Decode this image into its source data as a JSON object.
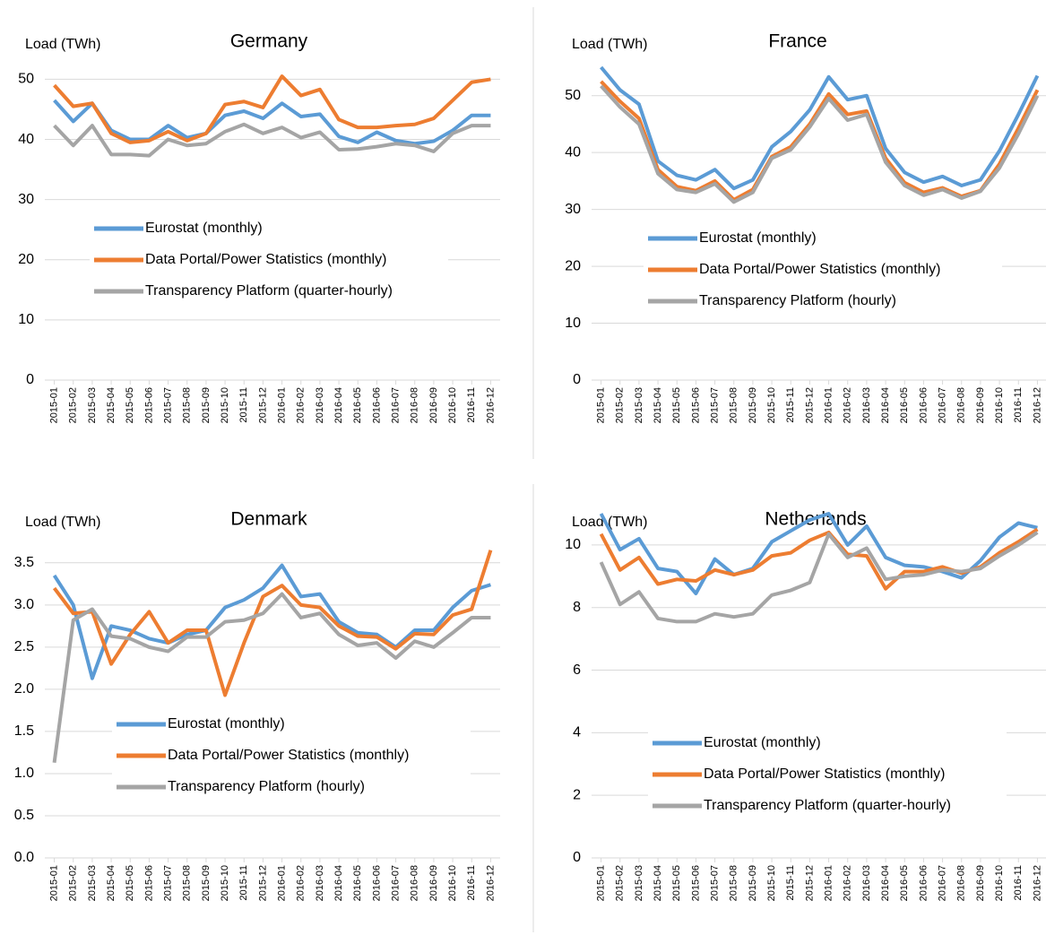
{
  "chart_data": [
    {
      "type": "line",
      "title": "Germany",
      "y_label": "Load (TWh)",
      "categories": [
        "2015-01",
        "2015-02",
        "2015-03",
        "2015-04",
        "2015-05",
        "2015-06",
        "2015-07",
        "2015-08",
        "2015-09",
        "2015-10",
        "2015-11",
        "2015-12",
        "2016-01",
        "2016-02",
        "2016-03",
        "2016-04",
        "2016-05",
        "2016-06",
        "2016-07",
        "2016-08",
        "2016-09",
        "2016-10",
        "2016-11",
        "2016-12"
      ],
      "series": [
        {
          "name": "Eurostat (monthly)",
          "color": "#5b9bd5",
          "values": [
            46.5,
            43,
            46,
            41.5,
            40,
            40,
            42.3,
            40.3,
            41,
            44,
            44.7,
            43.5,
            46,
            43.8,
            44.2,
            40.5,
            39.5,
            41.2,
            39.8,
            39.3,
            39.7,
            41.5,
            44,
            44
          ]
        },
        {
          "name": "Data Portal/Power Statistics (monthly)",
          "color": "#ed7d31",
          "values": [
            49,
            45.5,
            46,
            41,
            39.5,
            39.8,
            41.3,
            39.8,
            41,
            45.8,
            46.3,
            45.3,
            50.5,
            47.3,
            48.3,
            43.3,
            42,
            42,
            42.3,
            42.5,
            43.5,
            46.5,
            49.5,
            50
          ]
        },
        {
          "name": "Transparency Platform (quarter-hourly)",
          "color": "#a5a5a5",
          "values": [
            42.3,
            39,
            42.3,
            37.5,
            37.5,
            37.3,
            40,
            39,
            39.3,
            41.3,
            42.5,
            41,
            42,
            40.3,
            41.2,
            38.3,
            38.4,
            38.8,
            39.3,
            39,
            38,
            41,
            42.3,
            42.3
          ]
        }
      ],
      "ylim": [
        0,
        52
      ],
      "yticks": [
        0,
        10,
        20,
        30,
        40,
        50
      ],
      "grid": true
    },
    {
      "type": "line",
      "title": "France",
      "y_label": "Load (TWh)",
      "categories": [
        "2015-01",
        "2015-02",
        "2015-03",
        "2015-04",
        "2015-05",
        "2015-06",
        "2015-07",
        "2015-08",
        "2015-09",
        "2015-10",
        "2015-11",
        "2015-12",
        "2016-01",
        "2016-02",
        "2016-03",
        "2016-04",
        "2016-05",
        "2016-06",
        "2016-07",
        "2016-08",
        "2016-09",
        "2016-10",
        "2016-11",
        "2016-12"
      ],
      "series": [
        {
          "name": "Eurostat (monthly)",
          "color": "#5b9bd5",
          "values": [
            55,
            51,
            48.5,
            38.5,
            36,
            35.2,
            37,
            33.7,
            35.2,
            41,
            43.7,
            47.5,
            53.3,
            49.3,
            50,
            40.7,
            36.5,
            34.8,
            35.8,
            34.2,
            35.2,
            40.3,
            46.7,
            53.5
          ]
        },
        {
          "name": "Data Portal/Power Statistics (monthly)",
          "color": "#ed7d31",
          "values": [
            52.5,
            49,
            46,
            37,
            34,
            33.3,
            35,
            31.7,
            33.5,
            39.3,
            41,
            45,
            50.3,
            46.7,
            47.3,
            39,
            34.7,
            33,
            33.8,
            32.3,
            33.3,
            38,
            44.3,
            51
          ]
        },
        {
          "name": "Transparency Platform (hourly)",
          "color": "#a5a5a5",
          "values": [
            51.7,
            48,
            45,
            36.3,
            33.5,
            33,
            34.5,
            31.3,
            33,
            39,
            40.5,
            44.5,
            49.5,
            45.7,
            46.7,
            38.3,
            34.2,
            32.5,
            33.5,
            32,
            33.2,
            37.3,
            43.3,
            50
          ]
        }
      ],
      "ylim": [
        0,
        55
      ],
      "yticks": [
        0,
        10,
        20,
        30,
        40,
        50
      ],
      "grid": true
    },
    {
      "type": "line",
      "title": "Denmark",
      "y_label": "Load (TWh)",
      "categories": [
        "2015-01",
        "2015-02",
        "2015-03",
        "2015-04",
        "2015-05",
        "2015-06",
        "2015-07",
        "2015-08",
        "2015-09",
        "2015-10",
        "2015-11",
        "2015-12",
        "2016-01",
        "2016-02",
        "2016-03",
        "2016-04",
        "2016-05",
        "2016-06",
        "2016-07",
        "2016-08",
        "2016-09",
        "2016-10",
        "2016-11",
        "2016-12"
      ],
      "series": [
        {
          "name": "Eurostat (monthly)",
          "color": "#5b9bd5",
          "values": [
            3.35,
            3.0,
            2.13,
            2.75,
            2.7,
            2.6,
            2.55,
            2.65,
            2.7,
            2.97,
            3.06,
            3.2,
            3.47,
            3.1,
            3.13,
            2.8,
            2.67,
            2.65,
            2.5,
            2.7,
            2.7,
            2.97,
            3.17,
            3.24
          ]
        },
        {
          "name": "Data Portal/Power Statistics (monthly)",
          "color": "#ed7d31",
          "values": [
            3.2,
            2.9,
            2.92,
            2.3,
            2.65,
            2.92,
            2.55,
            2.7,
            2.7,
            1.93,
            2.55,
            3.1,
            3.23,
            3.0,
            2.97,
            2.75,
            2.63,
            2.62,
            2.48,
            2.66,
            2.65,
            2.88,
            2.95,
            3.65
          ]
        },
        {
          "name": "Transparency Platform (hourly)",
          "color": "#a5a5a5",
          "values": [
            1.13,
            2.82,
            2.95,
            2.63,
            2.6,
            2.5,
            2.45,
            2.62,
            2.62,
            2.8,
            2.82,
            2.9,
            3.13,
            2.85,
            2.9,
            2.65,
            2.52,
            2.55,
            2.37,
            2.57,
            2.5,
            2.67,
            2.85,
            2.85
          ]
        }
      ],
      "ylim": [
        0,
        3.7
      ],
      "yticks": [
        {
          "value": 0,
          "label": "0.0"
        },
        0.5,
        {
          "value": 1,
          "label": "1.0"
        },
        1.5,
        {
          "value": 2,
          "label": "2.0"
        },
        2.5,
        {
          "value": 3,
          "label": "3.0"
        },
        3.5
      ],
      "grid": true
    },
    {
      "type": "line",
      "title": "Netherlands",
      "y_label": "Load (TWh)",
      "categories": [
        "2015-01",
        "2015-02",
        "2015-03",
        "2015-04",
        "2015-05",
        "2015-06",
        "2015-07",
        "2015-08",
        "2015-09",
        "2015-10",
        "2015-11",
        "2015-12",
        "2016-01",
        "2016-02",
        "2016-03",
        "2016-04",
        "2016-05",
        "2016-06",
        "2016-07",
        "2016-08",
        "2016-09",
        "2016-10",
        "2016-11",
        "2016-12"
      ],
      "series": [
        {
          "name": "Eurostat (monthly)",
          "color": "#5b9bd5",
          "values": [
            11,
            9.85,
            10.2,
            9.25,
            9.15,
            8.45,
            9.55,
            9.05,
            9.25,
            10.1,
            10.45,
            10.8,
            11,
            10,
            10.6,
            9.6,
            9.35,
            9.3,
            9.15,
            8.95,
            9.5,
            10.25,
            10.7,
            10.55
          ]
        },
        {
          "name": "Data Portal/Power Statistics (monthly)",
          "color": "#ed7d31",
          "values": [
            10.35,
            9.2,
            9.6,
            8.75,
            8.9,
            8.85,
            9.2,
            9.05,
            9.2,
            9.65,
            9.75,
            10.15,
            10.4,
            9.7,
            9.65,
            8.6,
            9.15,
            9.15,
            9.3,
            9.1,
            9.3,
            9.75,
            10.1,
            10.5
          ]
        },
        {
          "name": "Transparency Platform (quarter-hourly)",
          "color": "#a5a5a5",
          "values": [
            9.45,
            8.1,
            8.5,
            7.65,
            7.55,
            7.55,
            7.8,
            7.7,
            7.8,
            8.4,
            8.55,
            8.8,
            10.35,
            9.6,
            9.9,
            8.9,
            9.0,
            9.05,
            9.2,
            9.15,
            9.25,
            9.65,
            10,
            10.4
          ]
        }
      ],
      "ylim": [
        0,
        11
      ],
      "yticks": [
        0,
        2,
        4,
        6,
        8,
        10
      ],
      "grid": true
    }
  ]
}
